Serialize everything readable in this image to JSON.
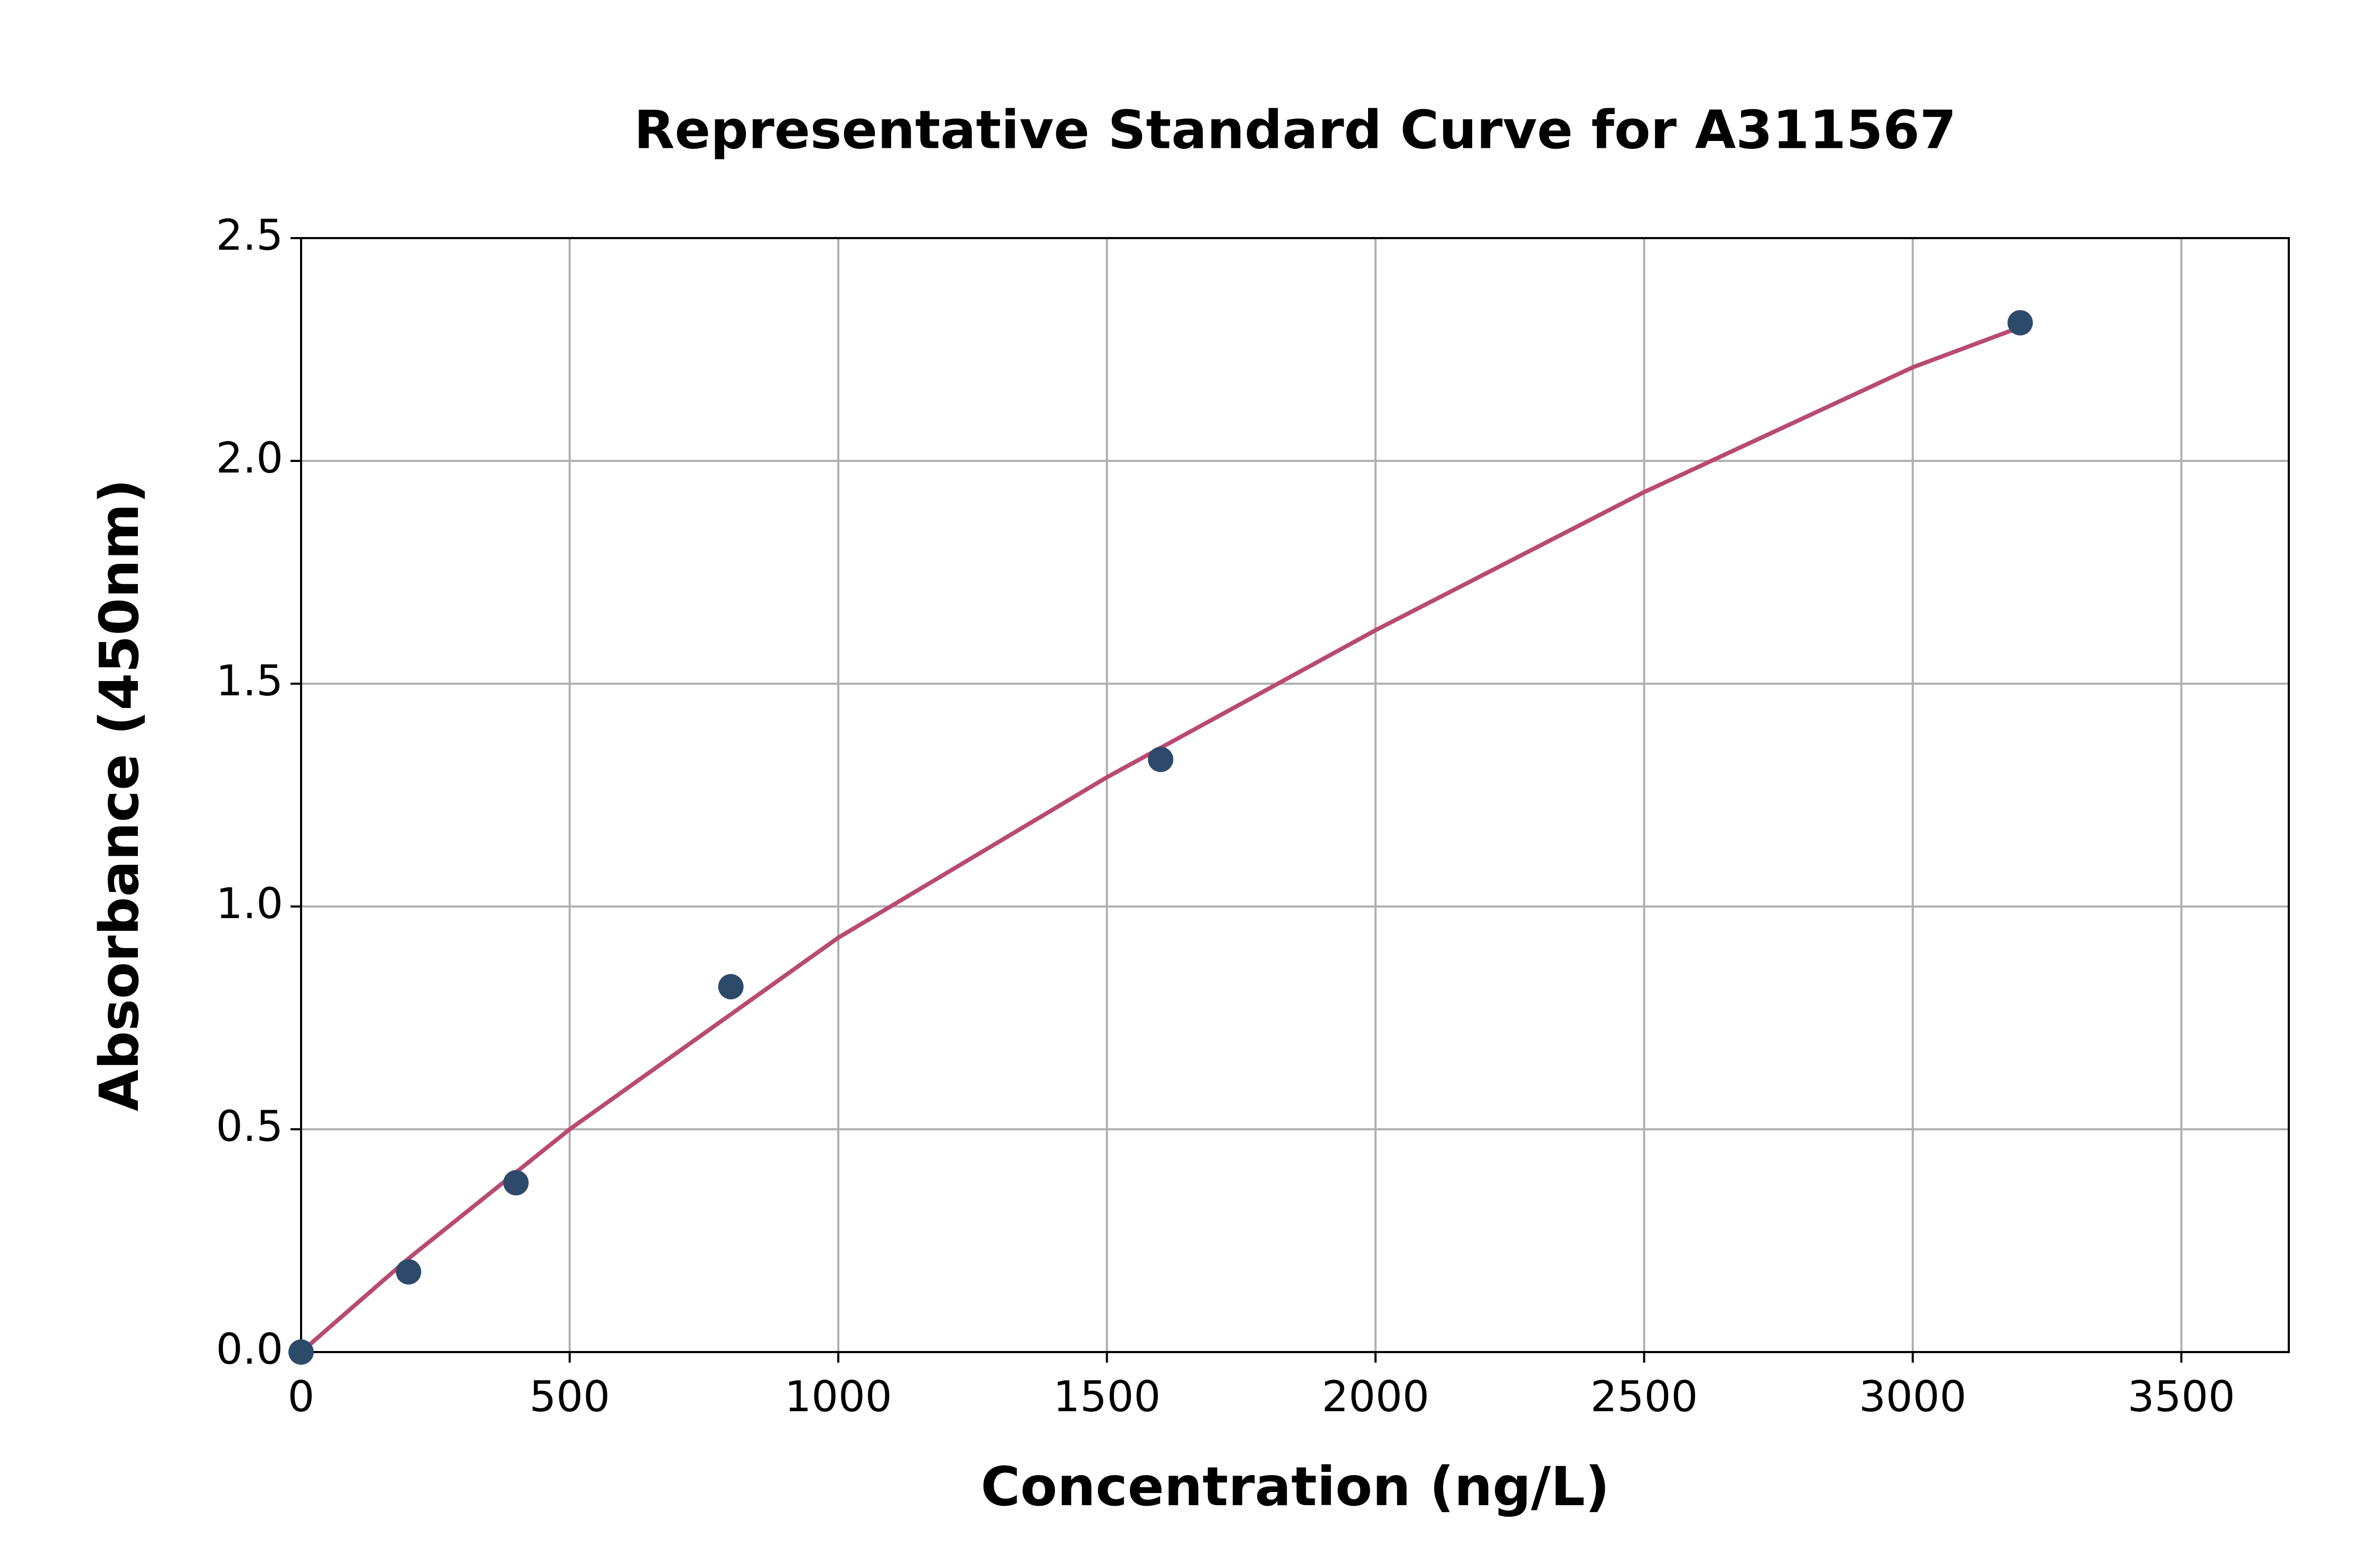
{
  "chart_data": {
    "type": "scatter",
    "title": "Representative Standard Curve for A311567",
    "x_label": "Concentration (ng/L)",
    "y_label": "Absorbance (450nm)",
    "xlim": [
      0,
      3700
    ],
    "ylim": [
      0,
      2.5
    ],
    "xticks": [
      0,
      500,
      1000,
      1500,
      2000,
      2500,
      3000,
      3500
    ],
    "yticks": [
      {
        "value": 0,
        "label": "0.0"
      },
      0.5,
      {
        "value": 1,
        "label": "1.0"
      },
      1.5,
      {
        "value": 2,
        "label": "2.0"
      },
      2.5
    ],
    "grid": true,
    "series": [
      {
        "type": "line",
        "color": "#b94a72",
        "x": [
          0,
          200,
          500,
          1000,
          1500,
          2000,
          2500,
          3000,
          3200
        ],
        "values": [
          0,
          0.21,
          0.5,
          0.93,
          1.29,
          1.62,
          1.93,
          2.21,
          2.3
        ]
      },
      {
        "type": "scatter",
        "color": "#2d4a6b",
        "x": [
          0,
          200,
          400,
          800,
          1600,
          3200
        ],
        "values": [
          0,
          0.18,
          0.38,
          0.82,
          1.33,
          2.31
        ]
      }
    ]
  }
}
